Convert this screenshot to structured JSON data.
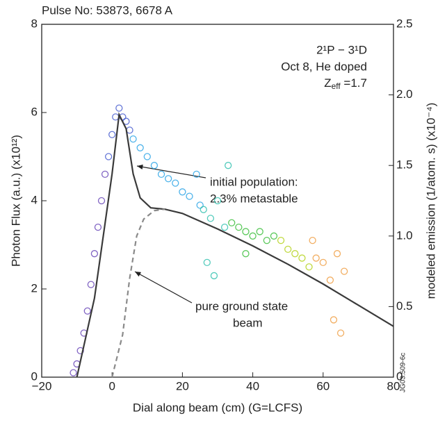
{
  "chart_data": {
    "type": "scatter",
    "title": "Pulse No: 53873, 6678 A",
    "xlabel": "Dial along beam (cm) (G=LCFS)",
    "ylabel": "Photon Flux (a.u.)  (x10¹²)",
    "y2label": "modeled emission (1/atom. s)  (x10⁻⁴)",
    "transition": "2¹P − 3¹D",
    "date_note": "Oct 8, He doped",
    "zeff": {
      "symbol": "Z",
      "subscript": "eff",
      "value": " =1.7"
    },
    "annotations": [
      "initial population:",
      "2.3% metastable",
      "pure ground state",
      "beam"
    ],
    "figure_id": "JG03.509-6c",
    "xlim": [
      -20,
      80
    ],
    "xticks": [
      {
        "value": -20,
        "label": "−20"
      },
      0,
      20,
      40,
      60,
      80
    ],
    "ylim": [
      0,
      8
    ],
    "yticks": [
      0,
      2,
      4,
      6,
      8
    ],
    "y2lim": [
      0,
      2.5
    ],
    "y2ticks": [
      0,
      0.5,
      {
        "value": 1,
        "label": "1.0"
      },
      1.5,
      {
        "value": 2,
        "label": "2.0"
      },
      2.5
    ],
    "series": [
      {
        "type": "scatter",
        "color": "#6a48b8",
        "x": [
          -11,
          -10,
          -9,
          -8,
          -7,
          -6,
          -5,
          -4,
          -3,
          -2
        ],
        "values": [
          0.1,
          0.3,
          0.6,
          1.0,
          1.5,
          2.1,
          2.8,
          3.4,
          4.0,
          4.6
        ]
      },
      {
        "type": "scatter",
        "color": "#4a5fd0",
        "x": [
          -1,
          0,
          1,
          2,
          3,
          4,
          5
        ],
        "values": [
          5.0,
          5.5,
          5.9,
          6.1,
          5.9,
          5.8,
          5.6
        ]
      },
      {
        "type": "scatter",
        "color": "#2fa6e6",
        "x": [
          6,
          8,
          10,
          12,
          14,
          16,
          18,
          20,
          22,
          24,
          25
        ],
        "values": [
          5.4,
          5.2,
          5.0,
          4.8,
          4.6,
          4.5,
          4.4,
          4.2,
          4.1,
          4.6,
          3.9
        ]
      },
      {
        "type": "scatter",
        "color": "#35c2b0",
        "x": [
          26,
          28,
          30,
          32,
          33,
          27,
          29
        ],
        "values": [
          3.8,
          3.6,
          4.0,
          3.4,
          4.8,
          2.6,
          2.3
        ]
      },
      {
        "type": "scatter",
        "color": "#3fbf3f",
        "x": [
          34,
          36,
          38,
          40,
          42,
          44,
          46,
          38
        ],
        "values": [
          3.5,
          3.4,
          3.3,
          3.2,
          3.3,
          3.1,
          3.2,
          2.8
        ]
      },
      {
        "type": "scatter",
        "color": "#b5d21f",
        "x": [
          48,
          50,
          52,
          54,
          56
        ],
        "values": [
          3.1,
          2.9,
          2.8,
          2.7,
          2.5
        ]
      },
      {
        "type": "scatter",
        "color": "#f0a046",
        "x": [
          57,
          58,
          60,
          62,
          64,
          66,
          63,
          65
        ],
        "values": [
          3.1,
          2.7,
          2.6,
          2.2,
          2.8,
          2.4,
          1.3,
          1.0
        ]
      },
      {
        "type": "line",
        "axis": "y2",
        "color": "#3a3a3a",
        "dash": false,
        "x": [
          -10,
          -5,
          0,
          2,
          4,
          6,
          8,
          11,
          15,
          20,
          30,
          40,
          50,
          60,
          70,
          80
        ],
        "values": [
          0,
          0.56,
          1.44,
          1.86,
          1.76,
          1.44,
          1.27,
          1.2,
          1.19,
          1.16,
          1.05,
          0.93,
          0.8,
          0.66,
          0.51,
          0.36
        ]
      },
      {
        "type": "line",
        "axis": "y2",
        "color": "#8a8a8a",
        "dash": true,
        "x": [
          0,
          3,
          5,
          7,
          9,
          12,
          15
        ],
        "values": [
          0,
          0.3,
          0.7,
          1.0,
          1.12,
          1.18,
          1.19
        ]
      }
    ]
  }
}
